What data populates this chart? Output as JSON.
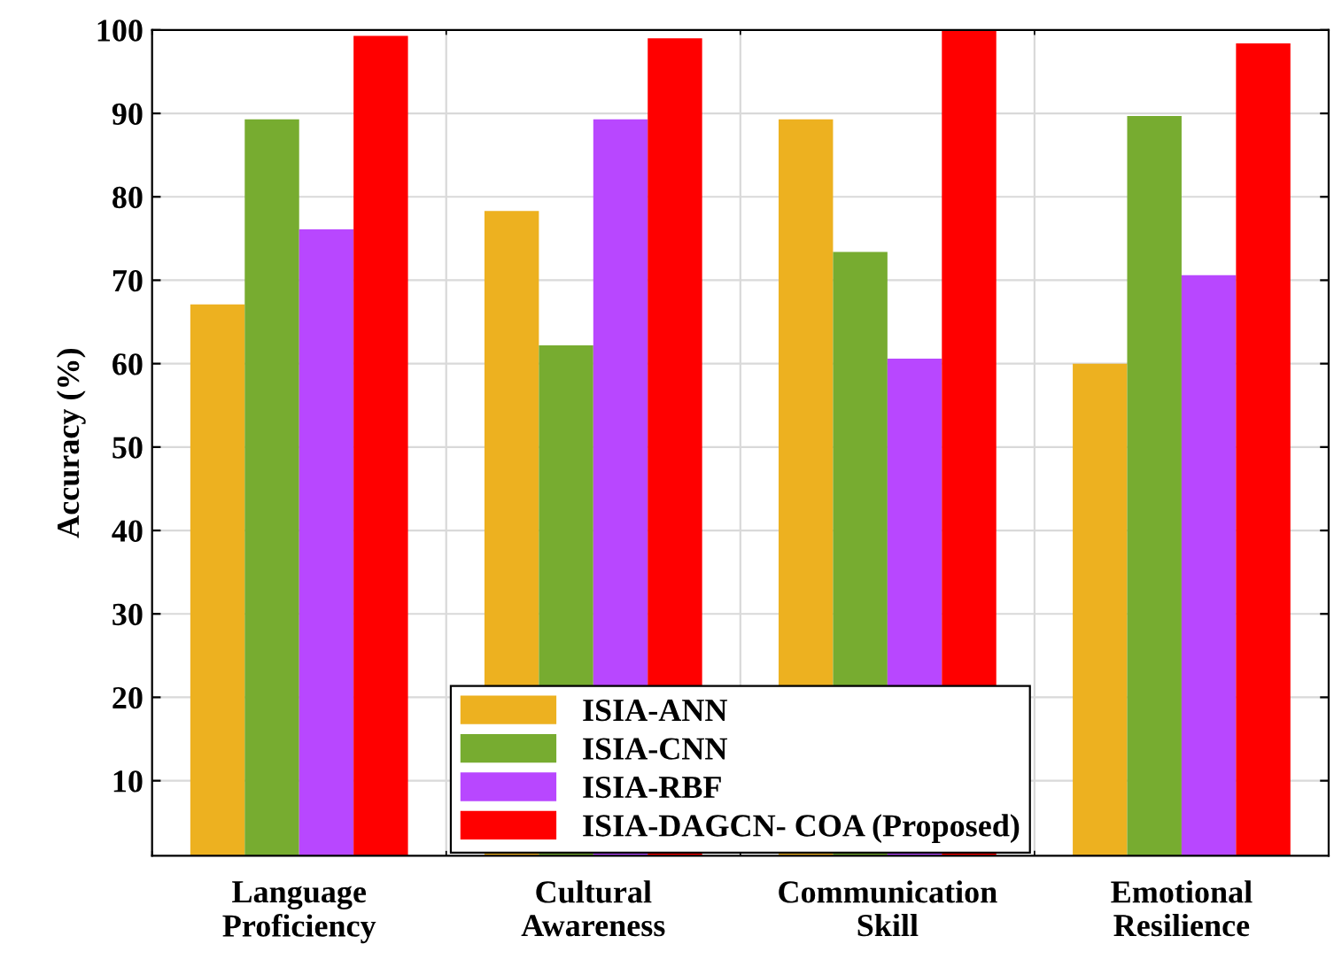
{
  "chart_data": {
    "type": "bar",
    "ylabel": "Accuracy (%)",
    "categories": [
      "Language\nProficiency",
      "Cultural\nAwareness",
      "Communication\nSkill",
      "Emotional\nResilience"
    ],
    "series": [
      {
        "name": "ISIA-ANN",
        "color": "#edb120",
        "values": [
          67.1,
          78.3,
          89.3,
          60
        ]
      },
      {
        "name": "ISIA-CNN",
        "color": "#77ac30",
        "values": [
          89.3,
          62.2,
          73.4,
          89.7
        ]
      },
      {
        "name": "ISIA-RBF",
        "color": "#b847ff",
        "values": [
          76.1,
          89.3,
          60.6,
          70.6
        ]
      },
      {
        "name": "ISIA-DAGCN- COA (Proposed)",
        "color": "#ff0000",
        "values": [
          99.3,
          99.0,
          100,
          98.4
        ]
      }
    ],
    "ylim": [
      1,
      100
    ],
    "yticks": [
      10,
      20,
      30,
      40,
      50,
      60,
      70,
      80,
      90,
      100
    ],
    "grid": true,
    "legend": "bottom"
  }
}
